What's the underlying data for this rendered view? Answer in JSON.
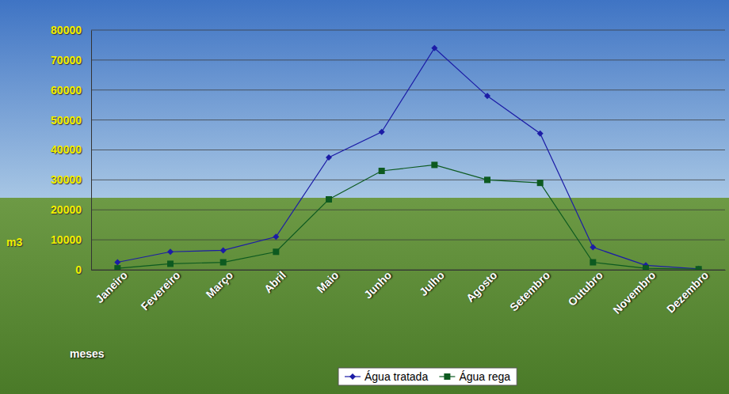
{
  "chart_data": {
    "type": "line",
    "categories": [
      "Janeiro",
      "Fevereiro",
      "Março",
      "Abril",
      "Maio",
      "Junho",
      "Julho",
      "Agosto",
      "Setembro",
      "Outubro",
      "Novembro",
      "Dezembro"
    ],
    "series": [
      {
        "name": "Água tratada",
        "color": "#1c1ca6",
        "marker": "diamond",
        "values": [
          2500,
          6000,
          6500,
          11000,
          37500,
          46000,
          74000,
          58000,
          45500,
          7500,
          1500,
          300
        ]
      },
      {
        "name": "Água rega",
        "color": "#0d5a20",
        "marker": "square",
        "values": [
          500,
          2000,
          2500,
          6000,
          23500,
          33000,
          35000,
          30000,
          29000,
          2500,
          500,
          200
        ]
      }
    ],
    "ylim": [
      0,
      80000
    ],
    "yticks": [
      0,
      10000,
      20000,
      30000,
      40000,
      50000,
      60000,
      70000,
      80000
    ],
    "y_label": "m3",
    "x_label": "meses",
    "grid": true,
    "legend": "bottom"
  }
}
